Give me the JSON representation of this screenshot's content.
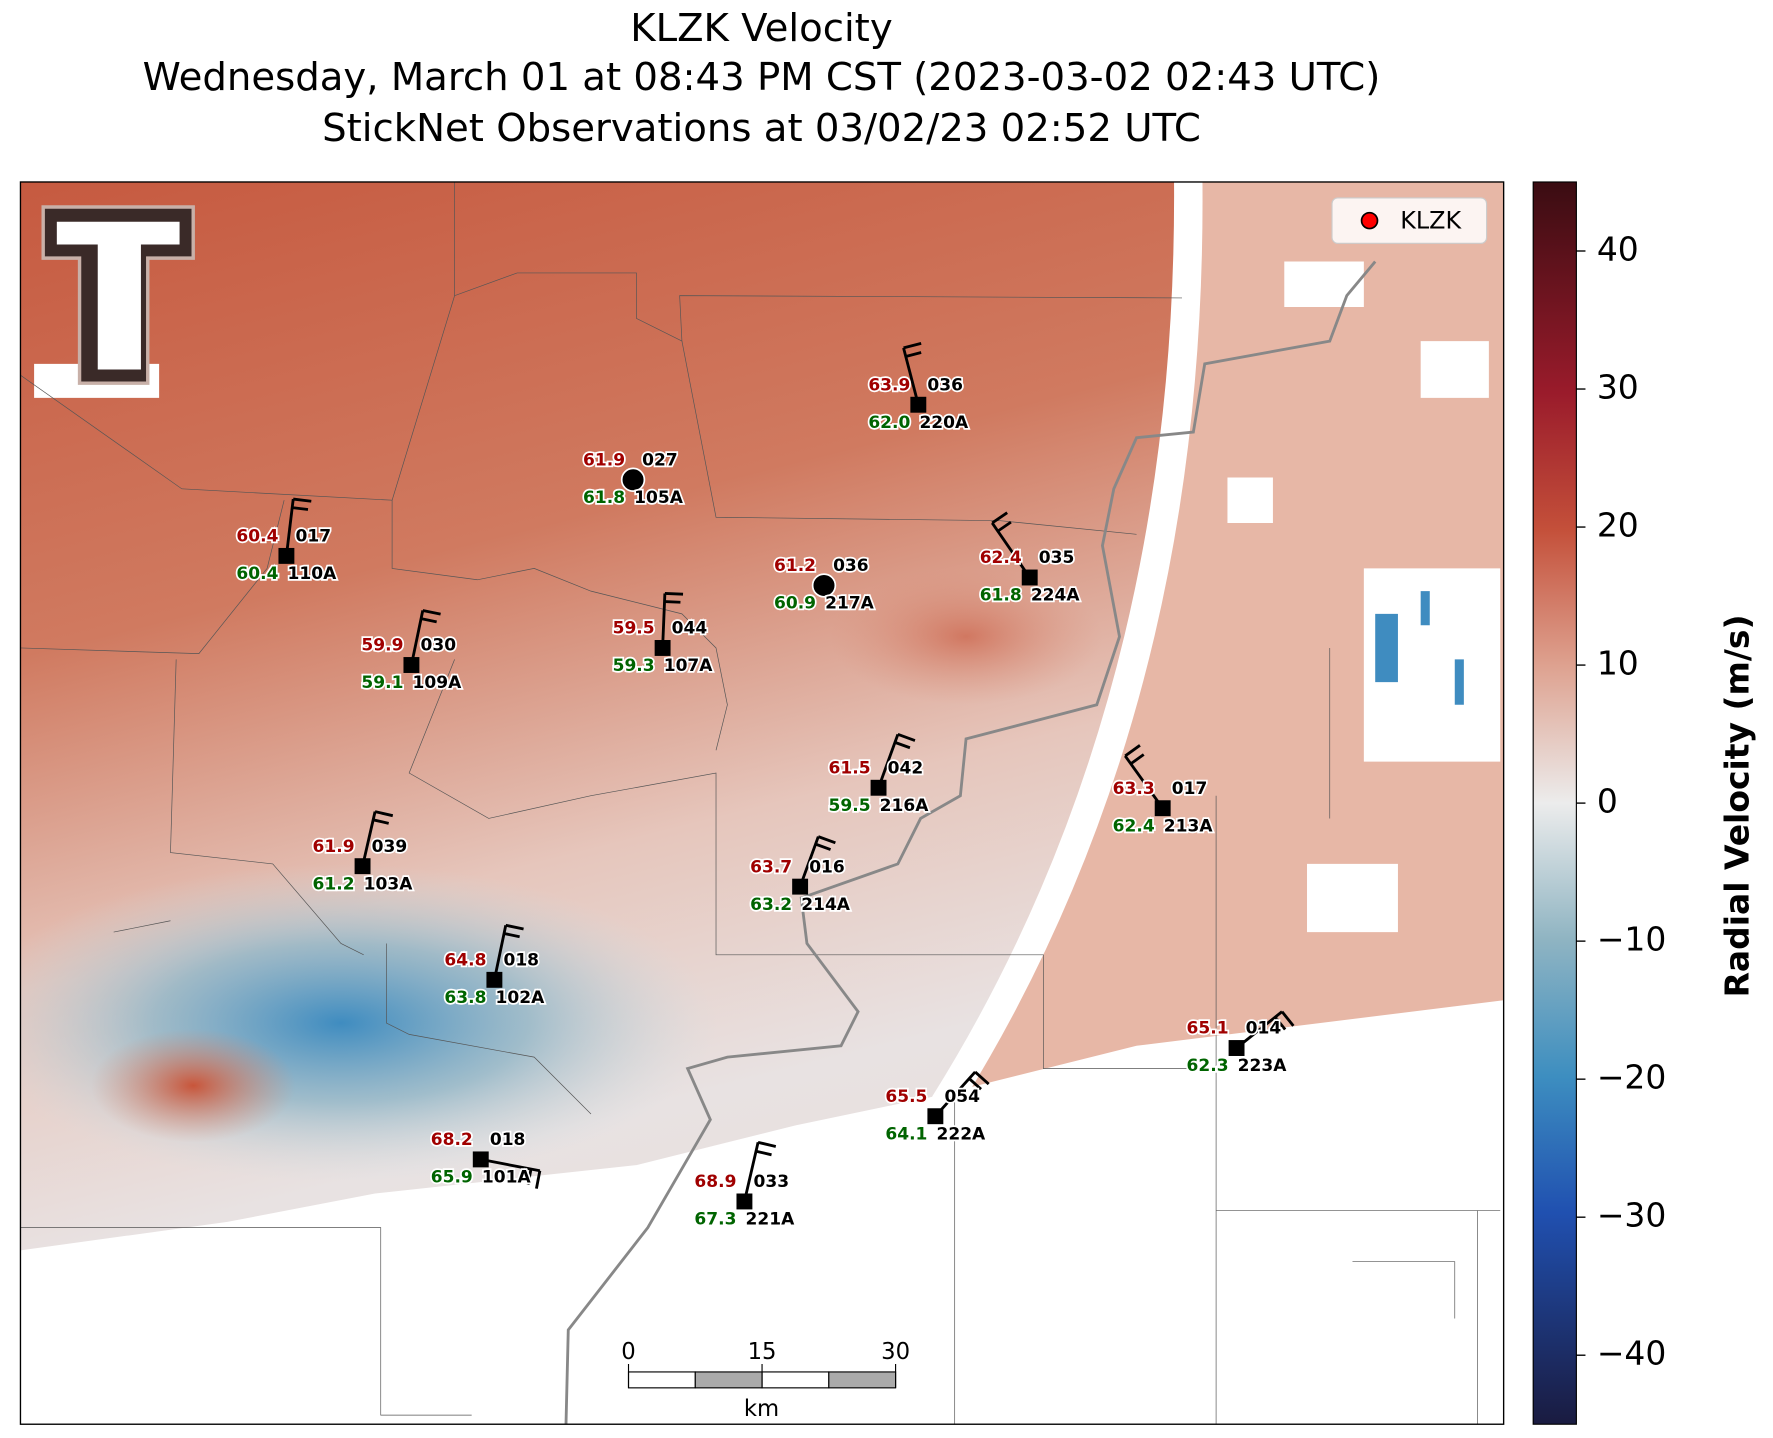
{
  "header": {
    "title": "KLZK Velocity",
    "subtitle": "Wednesday, March 01 at 08:43 PM CST (2023-03-02 02:43 UTC)",
    "observations": "StickNet Observations at 03/02/23 02:52 UTC"
  },
  "legend": {
    "label": "KLZK",
    "color": "#ff0000"
  },
  "colorbar": {
    "label": "Radial Velocity (m/s)",
    "lim": [
      -45,
      45
    ],
    "ticks": [
      40,
      30,
      20,
      10,
      0,
      {
        "value": -10,
        "label": "−10"
      },
      {
        "value": -20,
        "label": "−20"
      },
      {
        "value": -30,
        "label": "−30"
      },
      {
        "value": -40,
        "label": "−40"
      }
    ]
  },
  "scale_bar": {
    "ticks": [
      0,
      15,
      30
    ],
    "unit": "km"
  },
  "stations": [
    {
      "id": "110A",
      "temperature": "60.4",
      "dewpoint": "60.4",
      "wind": "017"
    },
    {
      "id": "105A",
      "temperature": "61.9",
      "dewpoint": "61.8",
      "wind": "027"
    },
    {
      "id": "220A",
      "temperature": "63.9",
      "dewpoint": "62.0",
      "wind": "036"
    },
    {
      "id": "217A",
      "temperature": "61.2",
      "dewpoint": "60.9",
      "wind": "036"
    },
    {
      "id": "224A",
      "temperature": "62.4",
      "dewpoint": "61.8",
      "wind": "035"
    },
    {
      "id": "109A",
      "temperature": "59.9",
      "dewpoint": "59.1",
      "wind": "030"
    },
    {
      "id": "107A",
      "temperature": "59.5",
      "dewpoint": "59.3",
      "wind": "044"
    },
    {
      "id": "216A",
      "temperature": "61.5",
      "dewpoint": "59.5",
      "wind": "042"
    },
    {
      "id": "213A",
      "temperature": "63.3",
      "dewpoint": "62.4",
      "wind": "017"
    },
    {
      "id": "103A",
      "temperature": "61.9",
      "dewpoint": "61.2",
      "wind": "039"
    },
    {
      "id": "214A",
      "temperature": "63.7",
      "dewpoint": "63.2",
      "wind": "016"
    },
    {
      "id": "102A",
      "temperature": "64.8",
      "dewpoint": "63.8",
      "wind": "018"
    },
    {
      "id": "223A",
      "temperature": "65.1",
      "dewpoint": "62.3",
      "wind": "014"
    },
    {
      "id": "222A",
      "temperature": "65.5",
      "dewpoint": "64.1",
      "wind": "054"
    },
    {
      "id": "101A",
      "temperature": "68.2",
      "dewpoint": "65.9",
      "wind": "018"
    },
    {
      "id": "221A",
      "temperature": "68.9",
      "dewpoint": "67.3",
      "wind": "033"
    }
  ]
}
